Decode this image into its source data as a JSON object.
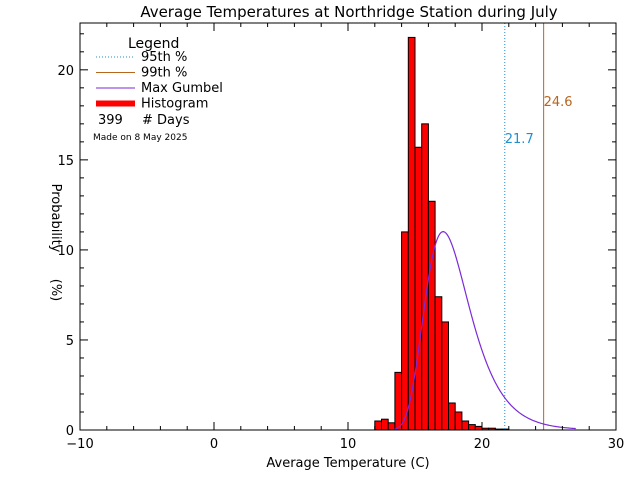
{
  "chart_data": {
    "type": "bar",
    "title": "Average Temperatures at Northridge Station during July",
    "xlabel": "Average Temperature (C)",
    "ylabel_line1": "Probability",
    "ylabel_line2": "(%)",
    "xlim": [
      -10,
      30
    ],
    "ylim": [
      0,
      22.6
    ],
    "xticks": [
      -10,
      0,
      10,
      20,
      30
    ],
    "yticks": [
      0,
      5,
      10,
      15,
      20
    ],
    "bin_width": 0.5,
    "histogram": {
      "bin_starts": [
        12.0,
        12.5,
        13.0,
        13.5,
        14.0,
        14.5,
        15.0,
        15.5,
        16.0,
        16.5,
        17.0,
        17.5,
        18.0,
        18.5,
        19.0,
        19.5,
        20.0,
        20.5,
        21.0,
        21.5,
        22.0,
        22.5,
        23.0,
        23.5,
        24.0,
        24.5,
        25.0,
        25.5,
        26.0,
        26.5
      ],
      "values": [
        0.5,
        0.6,
        0.4,
        3.2,
        11.0,
        21.8,
        15.7,
        17.0,
        12.7,
        7.4,
        6.0,
        1.5,
        1.0,
        0.5,
        0.3,
        0.2,
        0.1,
        0.1,
        0.05,
        0.05,
        0,
        0,
        0,
        0,
        0,
        0,
        0,
        0,
        0,
        0
      ],
      "values_note": ""
    },
    "bars": {
      "x_start": [
        12.0,
        12.5,
        13.0,
        13.5,
        14.0,
        14.5,
        15.0,
        15.5,
        16.0,
        16.5,
        17.0,
        17.5,
        18.0,
        18.5,
        19.0,
        19.5,
        20.0,
        20.5,
        21.0,
        21.5,
        22.0,
        22.5,
        23.0,
        23.5,
        24.0,
        24.5,
        25.0,
        25.5,
        26.0,
        26.5
      ],
      "x_end": [
        12.5,
        13.0,
        13.5,
        14.0,
        14.5,
        15.0,
        15.5,
        16.0,
        16.5,
        17.0,
        17.5,
        18.0,
        18.5,
        19.0,
        19.5,
        20.0,
        20.5,
        21.0,
        21.5,
        22.0,
        22.5,
        23.0,
        23.5,
        24.0,
        24.5,
        25.0,
        25.5,
        26.0,
        26.5,
        27.0
      ],
      "y": [
        0.5,
        0.6,
        0.4,
        3.2,
        11.0,
        21.8,
        15.7,
        17.0,
        12.7,
        7.4,
        6.0,
        1.5,
        1.0,
        0.5,
        0.3,
        0.2,
        0.1,
        0.1,
        0.05,
        0.05,
        0,
        0,
        0,
        0,
        0,
        0,
        0,
        0,
        0,
        0
      ]
    },
    "gumbel_curve": {
      "name": "Max Gumbel",
      "mu": 17.1,
      "beta": 1.67
    },
    "percentiles": [
      {
        "name": "95th %",
        "value": 21.7,
        "label": "21.7",
        "color": "#1f8fd0",
        "style": "dotted"
      },
      {
        "name": "99th %",
        "value": 24.6,
        "label": "24.6",
        "color": "#b8651e",
        "style": "solid"
      }
    ],
    "legend": {
      "title": "Legend",
      "placement": "top-left",
      "entries": [
        {
          "label": "95th %",
          "type": "dotted",
          "color": "#1f8fd0"
        },
        {
          "label": "99th %",
          "type": "line",
          "color": "#b8651e"
        },
        {
          "label": "Max Gumbel",
          "type": "line",
          "color": "#7b2ad6"
        },
        {
          "label": "Histogram",
          "type": "bar",
          "color": "#ff0000"
        }
      ],
      "days_count": "399",
      "days_label": "# Days"
    },
    "watermark": "Made on 8 May 2025",
    "colors": {
      "bar_fill": "#ff0000",
      "bar_edge": "#000000",
      "gumbel": "#7b2ad6",
      "p95": "#1f8fd0",
      "p99": "#b8651e",
      "watermark": "#b0b0b0"
    }
  }
}
